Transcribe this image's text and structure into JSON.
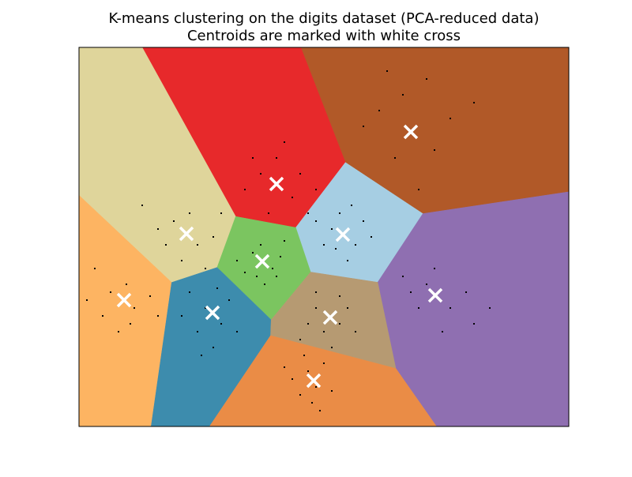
{
  "chart_data": {
    "type": "scatter",
    "title": "K-means clustering on the digits dataset (PCA-reduced data)",
    "subtitle": "Centroids are marked with white cross",
    "xlim": [
      0,
      620
    ],
    "ylim": [
      0,
      480
    ],
    "point_color": "#000000",
    "centroid_color": "#ffffff",
    "region_colors": [
      "#b15928",
      "#e7292b",
      "#dfd59b",
      "#a6cee3",
      "#7bc560",
      "#fdb462",
      "#8f6fb1",
      "#3d8cad",
      "#b69a72",
      "#ea8c46"
    ],
    "centroids": {
      "x": [
        420,
        250,
        136,
        334,
        232,
        57,
        451,
        169,
        318,
        297
      ],
      "y": [
        373,
        307,
        244,
        243,
        209,
        160,
        166,
        144,
        138,
        58
      ]
    },
    "points": {
      "x": [
        380,
        450,
        410,
        470,
        400,
        440,
        360,
        500,
        430,
        390,
        230,
        270,
        250,
        210,
        280,
        240,
        300,
        260,
        220,
        290,
        120,
        150,
        140,
        100,
        170,
        130,
        80,
        160,
        110,
        180,
        320,
        350,
        330,
        310,
        360,
        340,
        300,
        370,
        325,
        345,
        220,
        245,
        230,
        210,
        255,
        235,
        200,
        260,
        225,
        250,
        40,
        70,
        60,
        30,
        90,
        50,
        20,
        100,
        65,
        10,
        440,
        470,
        430,
        490,
        450,
        420,
        500,
        460,
        410,
        520,
        160,
        180,
        150,
        190,
        170,
        140,
        200,
        130,
        175,
        155,
        300,
        330,
        310,
        340,
        290,
        320,
        350,
        300,
        330,
        280,
        290,
        300,
        280,
        310,
        295,
        270,
        320,
        285,
        305,
        260
      ],
      "y": [
        400,
        350,
        420,
        390,
        340,
        440,
        380,
        410,
        300,
        450,
        320,
        290,
        340,
        300,
        320,
        270,
        300,
        360,
        340,
        270,
        260,
        230,
        270,
        250,
        240,
        210,
        280,
        200,
        230,
        270,
        250,
        230,
        270,
        230,
        260,
        210,
        260,
        240,
        225,
        280,
        220,
        200,
        230,
        195,
        215,
        180,
        210,
        235,
        190,
        190,
        170,
        150,
        180,
        140,
        165,
        120,
        200,
        140,
        130,
        160,
        180,
        150,
        150,
        170,
        200,
        170,
        130,
        120,
        190,
        150,
        150,
        130,
        120,
        160,
        100,
        170,
        120,
        140,
        175,
        90,
        150,
        130,
        120,
        150,
        130,
        100,
        120,
        170,
        165,
        110,
        70,
        50,
        40,
        80,
        30,
        60,
        45,
        90,
        20,
        75
      ]
    }
  }
}
